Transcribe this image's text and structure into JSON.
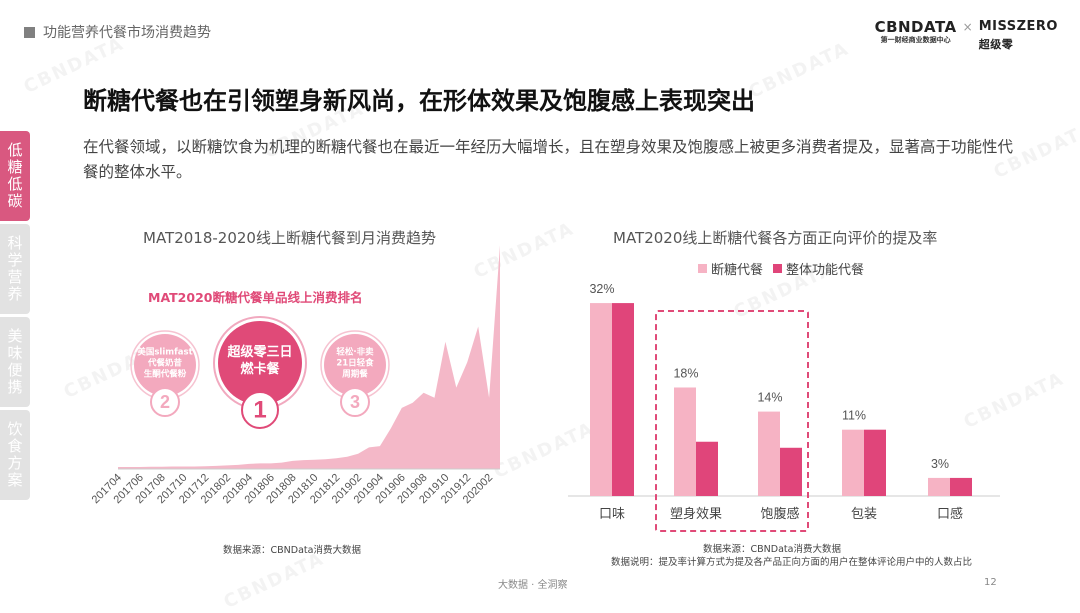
{
  "header": {
    "section": "功能营养代餐市场消费趋势"
  },
  "brand": {
    "name": "CBNDATA",
    "sub": "第一财经商业数据中心",
    "x": "×",
    "partner": "MISSZERO",
    "partner_sub": "超级零"
  },
  "headline": "断糖代餐也在引领塑身新风尚，在形体效果及饱腹感上表现突出",
  "description": "在代餐领域，以断糖饮食为机理的断糖代餐也在最近一年经历大幅增长，且在塑身效果及饱腹感上被更多消费者提及，显著高于功能性代餐的整体水平。",
  "side_tabs": [
    {
      "label": "低糖低碳",
      "active": true
    },
    {
      "label": "科学营养",
      "active": false
    },
    {
      "label": "美味便携",
      "active": false
    },
    {
      "label": "饮食方案",
      "active": false
    }
  ],
  "watermark": "CBNDATA",
  "colors": {
    "accent": "#d95880",
    "area": "#f4b8c8",
    "light_bar": "#f6b3c4",
    "dark_bar": "#e0457a",
    "highlight_box": "#e04a78"
  },
  "ranking": {
    "title": "MAT2020断糖代餐单品线上消费排名",
    "items": [
      {
        "rank": "2",
        "text": [
          "美国slimfast",
          "代餐奶昔",
          "生酮代餐粉"
        ]
      },
      {
        "rank": "1",
        "text": [
          "超级零三日",
          "燃卡餐"
        ]
      },
      {
        "rank": "3",
        "text": [
          "轻松·非卖",
          "21日轻食",
          "周期餐"
        ]
      }
    ]
  },
  "chart_data": [
    {
      "type": "area",
      "title": "MAT2018-2020线上断糖代餐到月消费趋势",
      "tick_labels": [
        "201704",
        "201706",
        "201708",
        "201710",
        "201712",
        "201802",
        "201804",
        "201806",
        "201808",
        "201810",
        "201812",
        "201902",
        "201904",
        "201906",
        "201908",
        "201910",
        "201912",
        "202002"
      ],
      "x": [
        "201704",
        "201705",
        "201706",
        "201707",
        "201708",
        "201709",
        "201710",
        "201711",
        "201712",
        "201801",
        "201802",
        "201803",
        "201804",
        "201805",
        "201806",
        "201807",
        "201808",
        "201809",
        "201810",
        "201811",
        "201812",
        "201901",
        "201902",
        "201903",
        "201904",
        "201905",
        "201906",
        "201907",
        "201908",
        "201909",
        "201910",
        "201911",
        "201912",
        "202001",
        "202002",
        "202003"
      ],
      "values": [
        0.8,
        0.8,
        0.8,
        0.9,
        0.9,
        1,
        1,
        1,
        1.1,
        1.2,
        1.4,
        1.6,
        2,
        2.2,
        2.2,
        2.5,
        3.2,
        3.5,
        3.6,
        3.8,
        4.2,
        4.8,
        6,
        8.5,
        9,
        16,
        24,
        26,
        30,
        28,
        50,
        32,
        42,
        56,
        28,
        88
      ],
      "ylim": [
        0,
        90
      ],
      "source": "数据来源：CBNData消费大数据"
    },
    {
      "type": "bar",
      "title": "MAT2020线上断糖代餐各方面正向评价的提及率",
      "categories": [
        "口味",
        "塑身效果",
        "饱腹感",
        "包装",
        "口感"
      ],
      "series": [
        {
          "name": "断糖代餐",
          "values": [
            32,
            18,
            14,
            11,
            3
          ]
        },
        {
          "name": "整体功能代餐",
          "values": [
            32,
            9,
            8,
            11,
            3
          ]
        }
      ],
      "data_labels": [
        "32%",
        "18%",
        "14%",
        "11%",
        "3%"
      ],
      "highlight": [
        "塑身效果",
        "饱腹感"
      ],
      "ylim": [
        0,
        35
      ],
      "source": "数据来源：CBNData消费大数据",
      "note": "数据说明：提及率计算方式为提及各产品正向方面的用户在整体评论用户中的人数占比"
    }
  ],
  "footer": {
    "text": "大数据 · 全洞察",
    "page": "12"
  }
}
